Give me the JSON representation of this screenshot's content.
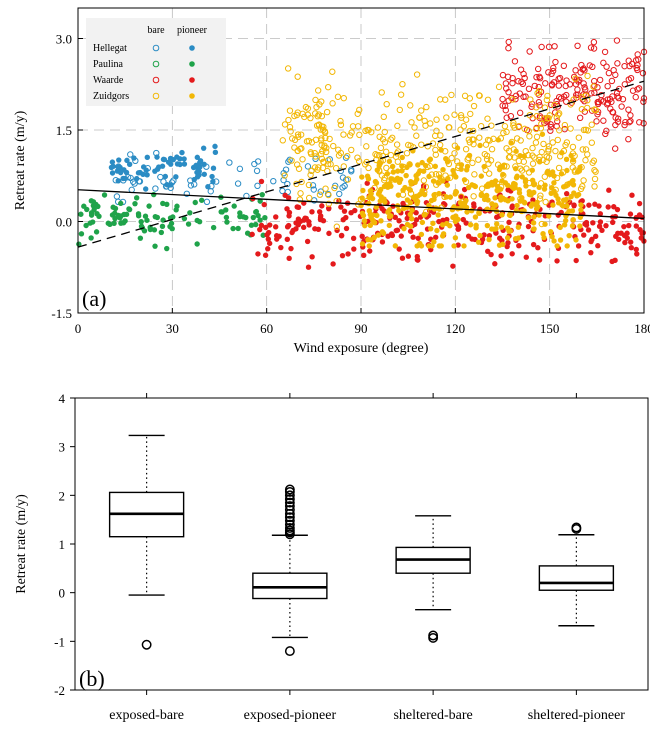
{
  "chart_data": [
    {
      "type": "scatter",
      "panel_label": "(a)",
      "xlabel": "Wind exposure (degree)",
      "ylabel": "Retreat rate (m/y)",
      "xlim": [
        0,
        180
      ],
      "ylim": [
        -1.5,
        3.5
      ],
      "xticks": [
        "0",
        "30",
        "60",
        "90",
        "120",
        "150",
        "180"
      ],
      "yticks": [
        "-1.5",
        "0.0",
        "1.5",
        "3.0"
      ],
      "grid": true,
      "legend": {
        "position": "top-left",
        "headers": [
          "bare",
          "pioneer"
        ],
        "sites": [
          "Hellegat",
          "Paulina",
          "Waarde",
          "Zuidgors"
        ]
      },
      "colors": {
        "Hellegat": "#2b8cc4",
        "Paulina": "#1fa34a",
        "Waarde": "#e41a1c",
        "Zuidgors": "#f2b705"
      },
      "series": [
        {
          "site": "Hellegat",
          "class": "bare",
          "x_range": [
            12,
            88
          ],
          "y_range": [
            -0.2,
            1.4
          ],
          "approx_mean_y": 0.7
        },
        {
          "site": "Hellegat",
          "class": "pioneer",
          "x_range": [
            10,
            45
          ],
          "y_range": [
            0.4,
            1.6
          ],
          "approx_mean_y": 0.85
        },
        {
          "site": "Paulina",
          "class": "pioneer",
          "x_range": [
            0,
            60
          ],
          "y_range": [
            -0.7,
            0.6
          ],
          "approx_mean_y": 0.05
        },
        {
          "site": "Waarde",
          "class": "bare",
          "x_range": [
            135,
            180
          ],
          "y_range": [
            0.5,
            3.3
          ],
          "approx_mean_y": 2.1
        },
        {
          "site": "Waarde",
          "class": "pioneer",
          "x_range": [
            55,
            180
          ],
          "y_range": [
            -1.2,
            1.2
          ],
          "approx_mean_y": -0.05
        },
        {
          "site": "Zuidgors",
          "class": "bare",
          "x_range": [
            65,
            165
          ],
          "y_range": [
            -1.1,
            2.6
          ],
          "approx_mean_y": 1.2
        },
        {
          "site": "Zuidgors",
          "class": "pioneer",
          "x_range": [
            90,
            160
          ],
          "y_range": [
            -0.4,
            2.6
          ],
          "approx_mean_y": 0.35
        }
      ],
      "trend_lines": [
        {
          "style": "solid",
          "points": [
            [
              0,
              0.52
            ],
            [
              180,
              0.05
            ]
          ]
        },
        {
          "style": "dashed",
          "points": [
            [
              0,
              -0.42
            ],
            [
              180,
              2.3
            ]
          ]
        }
      ]
    },
    {
      "type": "box",
      "panel_label": "(b)",
      "ylabel": "Retreat rate (m/y)",
      "ylim": [
        -2,
        4
      ],
      "yticks": [
        "-2",
        "-1",
        "0",
        "1",
        "2",
        "3",
        "4"
      ],
      "categories": [
        "exposed-bare",
        "exposed-pioneer",
        "sheltered-bare",
        "sheltered-pioneer"
      ],
      "boxes": [
        {
          "whisker_low": -0.05,
          "q1": 1.15,
          "median": 1.62,
          "q3": 2.06,
          "whisker_high": 3.23,
          "outliers": [
            -1.07
          ]
        },
        {
          "whisker_low": -0.92,
          "q1": -0.12,
          "median": 0.11,
          "q3": 0.4,
          "whisker_high": 1.18,
          "outliers": [
            -1.2,
            1.2,
            1.24,
            1.28,
            1.33,
            1.4,
            1.48,
            1.55,
            1.62,
            1.7,
            1.78,
            1.85,
            1.92,
            2.0,
            2.07,
            2.12
          ]
        },
        {
          "whisker_low": -0.35,
          "q1": 0.4,
          "median": 0.68,
          "q3": 0.93,
          "whisker_high": 1.58,
          "outliers": [
            -0.88,
            -0.93
          ]
        },
        {
          "whisker_low": -0.68,
          "q1": 0.05,
          "median": 0.2,
          "q3": 0.55,
          "whisker_high": 1.19,
          "outliers": [
            1.31,
            1.34
          ]
        }
      ]
    }
  ]
}
